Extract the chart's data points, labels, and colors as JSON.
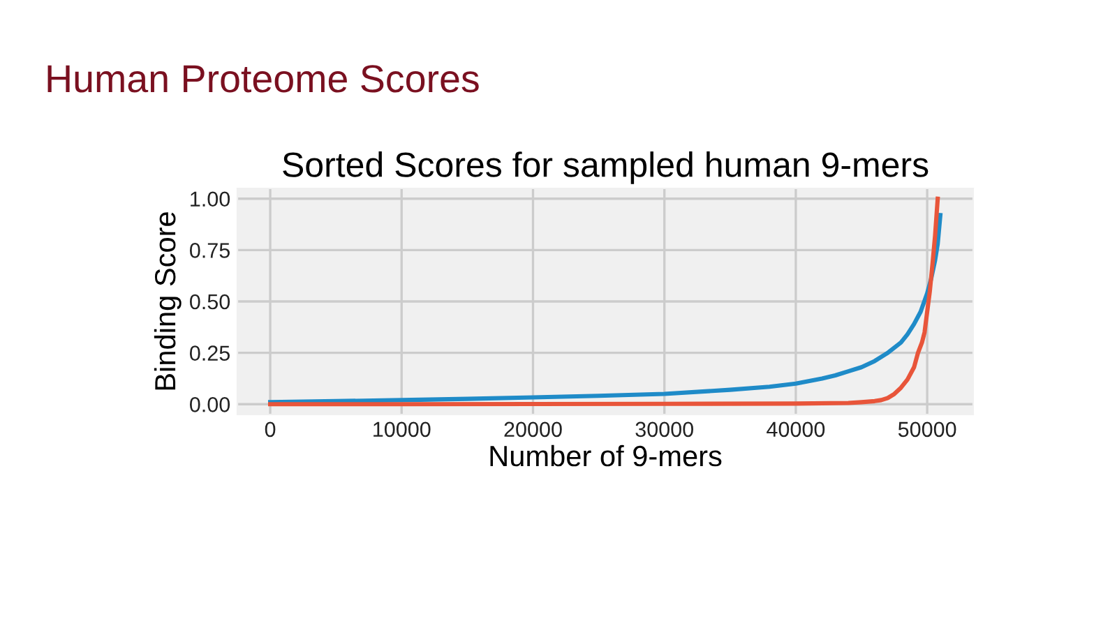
{
  "chart_data": {
    "type": "line",
    "title": "Human Proteome Scores",
    "subtitle": "Sorted Scores for sampled human 9-mers",
    "xlabel": "Number of 9-mers",
    "ylabel": "Binding Score",
    "series": [
      {
        "color": "#1f8bc8",
        "x": [
          0,
          5000,
          10000,
          15000,
          20000,
          25000,
          30000,
          35000,
          38000,
          40000,
          42000,
          43000,
          44000,
          45000,
          46000,
          47000,
          48000,
          48500,
          49000,
          49500,
          50000,
          50300,
          50600,
          50800,
          51000
        ],
        "values": [
          0.01,
          0.015,
          0.02,
          0.026,
          0.033,
          0.041,
          0.05,
          0.07,
          0.085,
          0.1,
          0.125,
          0.14,
          0.16,
          0.18,
          0.21,
          0.25,
          0.3,
          0.34,
          0.39,
          0.45,
          0.54,
          0.61,
          0.7,
          0.78,
          0.92
        ]
      },
      {
        "color": "#e8553a",
        "x": [
          0,
          10000,
          20000,
          30000,
          40000,
          44000,
          45000,
          46000,
          46500,
          47000,
          47500,
          48000,
          48500,
          49000,
          49300,
          49600,
          49800,
          50000,
          50200,
          50400,
          50600,
          50800
        ],
        "values": [
          0,
          0,
          0.001,
          0.002,
          0.003,
          0.006,
          0.01,
          0.015,
          0.02,
          0.03,
          0.05,
          0.08,
          0.12,
          0.18,
          0.25,
          0.3,
          0.35,
          0.45,
          0.55,
          0.68,
          0.82,
          1.0
        ]
      }
    ],
    "xlim": [
      -2500,
      53500
    ],
    "ylim": [
      -0.05,
      1.05
    ],
    "xticks": [
      0,
      10000,
      20000,
      30000,
      40000,
      50000
    ],
    "yticks": [
      {
        "value": 0,
        "label": "0.00"
      },
      {
        "value": 0.25,
        "label": "0.25"
      },
      {
        "value": 0.5,
        "label": "0.50"
      },
      {
        "value": 0.75,
        "label": "0.75"
      },
      {
        "value": 1,
        "label": "1.00"
      }
    ],
    "grid": true
  }
}
